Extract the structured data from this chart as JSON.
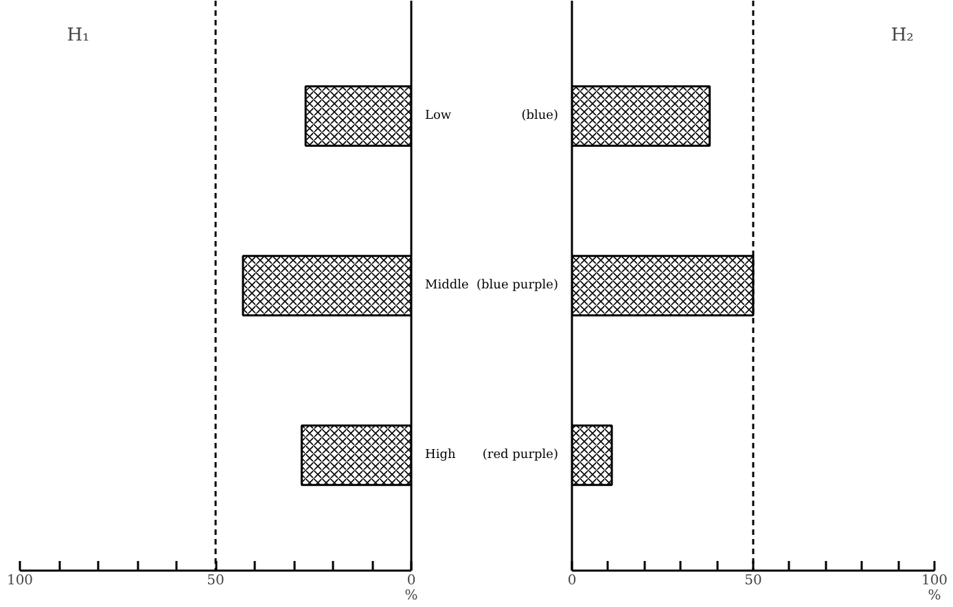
{
  "chart_data": [
    {
      "type": "bar",
      "orientation": "horizontal",
      "title": "H₁",
      "xlabel": "%",
      "categories": [
        "Low",
        "Middle",
        "High"
      ],
      "values": [
        27,
        43,
        28
      ],
      "color": "#000000",
      "xlim": [
        100,
        0
      ],
      "xticks": [
        {
          "value": 100,
          "label": "100"
        },
        {
          "value": 90,
          "label": null
        },
        {
          "value": 80,
          "label": null
        },
        {
          "value": 70,
          "label": null
        },
        {
          "value": 60,
          "label": null
        },
        {
          "value": 50,
          "label": "50"
        },
        {
          "value": 40,
          "label": null
        },
        {
          "value": 30,
          "label": null
        },
        {
          "value": 20,
          "label": null
        },
        {
          "value": 10,
          "label": null
        },
        {
          "value": 0,
          "label": "0"
        }
      ],
      "ref_lines": [
        {
          "axis": "x",
          "value": 50,
          "line_style": "dashed"
        }
      ],
      "grid": false
    },
    {
      "type": "bar",
      "orientation": "horizontal",
      "title": "H₂",
      "xlabel": "%",
      "categories": [
        "(blue)",
        "(blue purple)",
        "(red purple)"
      ],
      "values": [
        38,
        50,
        11
      ],
      "color": "#000000",
      "xlim": [
        0,
        100
      ],
      "xticks": [
        {
          "value": 0,
          "label": "0"
        },
        {
          "value": 10,
          "label": null
        },
        {
          "value": 20,
          "label": null
        },
        {
          "value": 30,
          "label": null
        },
        {
          "value": 40,
          "label": null
        },
        {
          "value": 50,
          "label": "50"
        },
        {
          "value": 60,
          "label": null
        },
        {
          "value": 70,
          "label": null
        },
        {
          "value": 80,
          "label": null
        },
        {
          "value": 90,
          "label": null
        },
        {
          "value": 100,
          "label": "100"
        }
      ],
      "ref_lines": [
        {
          "axis": "x",
          "value": 50,
          "line_style": "dashed"
        }
      ],
      "grid": false
    }
  ]
}
